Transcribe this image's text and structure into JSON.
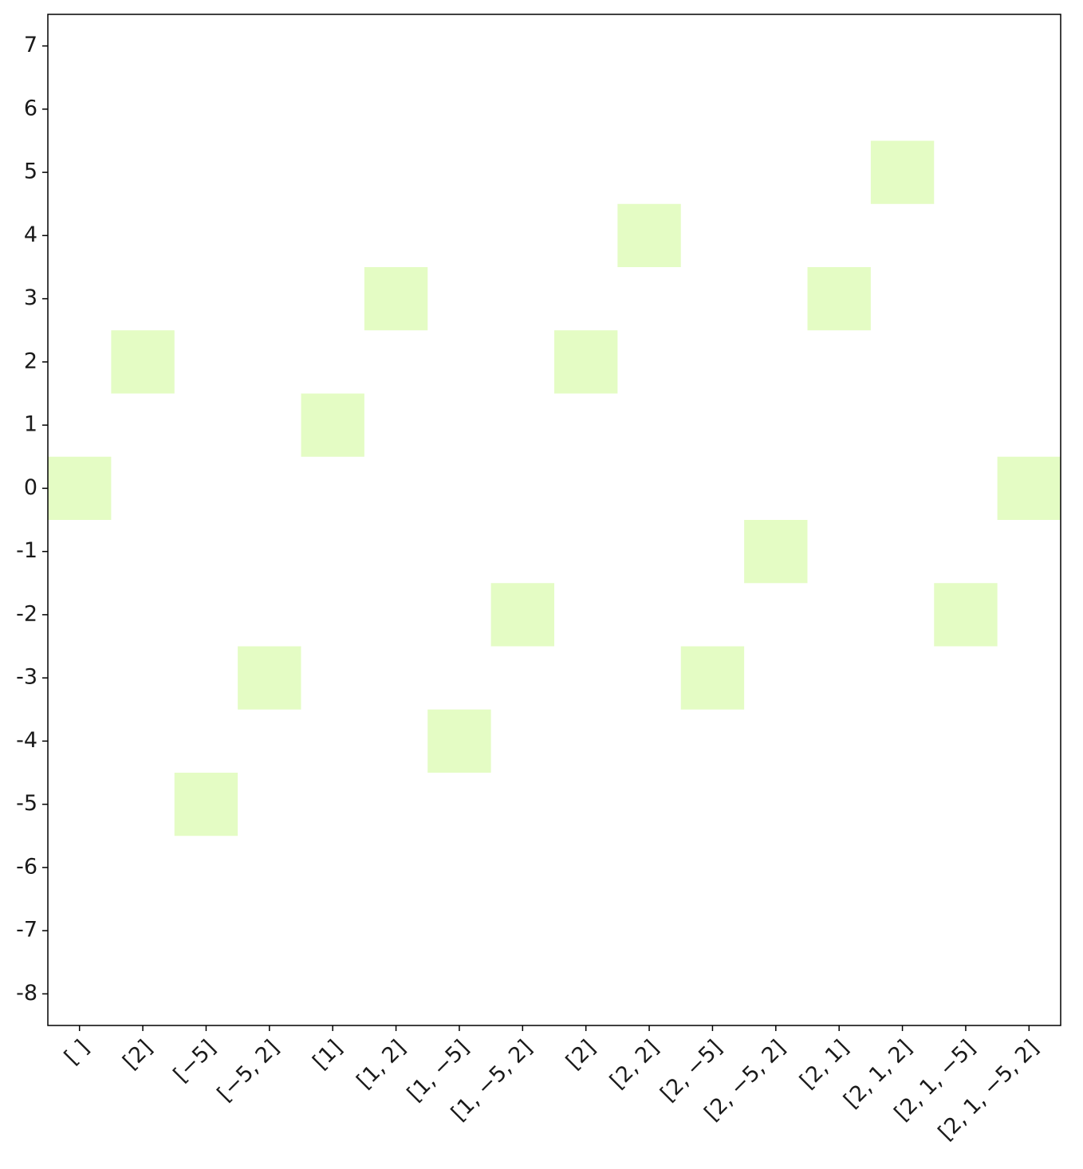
{
  "chart_data": {
    "type": "heatmap",
    "categories": [
      "[  ]",
      "[2]",
      "[−5]",
      "[−5, 2]",
      "[1]",
      "[1, 2]",
      "[1, −5]",
      "[1, −5, 2]",
      "[2]",
      "[2, 2]",
      "[2, −5]",
      "[2, −5, 2]",
      "[2, 1]",
      "[2, 1, 2]",
      "[2, 1, −5]",
      "[2, 1, −5, 2]"
    ],
    "values": [
      0,
      2,
      -5,
      -3,
      1,
      3,
      -4,
      -2,
      2,
      4,
      -3,
      -1,
      3,
      5,
      -2,
      0
    ],
    "color": "#e4fcc4",
    "ylim": [
      -8.5,
      7.5
    ],
    "yticks": [
      7,
      6,
      5,
      4,
      3,
      2,
      1,
      0,
      -1,
      -2,
      -3,
      -4,
      -5,
      -6,
      -7,
      -8
    ],
    "grid": false
  }
}
